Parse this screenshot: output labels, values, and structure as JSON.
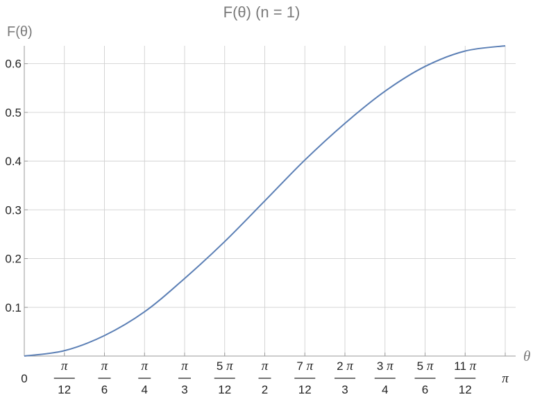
{
  "chart_data": {
    "type": "line",
    "title": "F(θ) (n = 1)",
    "xlabel": "θ",
    "ylabel": "F(θ)",
    "xlim": [
      0,
      3.14159265
    ],
    "ylim": [
      0,
      0.6366
    ],
    "grid": true,
    "x_ticks": [
      {
        "value": 0,
        "label": "0"
      },
      {
        "value": 0.2618,
        "num": "π",
        "den": "12"
      },
      {
        "value": 0.5236,
        "num": "π",
        "den": "6"
      },
      {
        "value": 0.7854,
        "num": "π",
        "den": "4"
      },
      {
        "value": 1.0472,
        "num": "π",
        "den": "3"
      },
      {
        "value": 1.309,
        "num": "5 π",
        "den": "12"
      },
      {
        "value": 1.5708,
        "num": "π",
        "den": "2"
      },
      {
        "value": 1.8326,
        "num": "7 π",
        "den": "12"
      },
      {
        "value": 2.0944,
        "num": "2 π",
        "den": "3"
      },
      {
        "value": 2.3562,
        "num": "3 π",
        "den": "4"
      },
      {
        "value": 2.618,
        "num": "5 π",
        "den": "6"
      },
      {
        "value": 2.8798,
        "num": "11 π",
        "den": "12"
      },
      {
        "value": 3.1416,
        "label": "π"
      }
    ],
    "y_ticks": [
      {
        "value": 0.1,
        "label": "0.1"
      },
      {
        "value": 0.2,
        "label": "0.2"
      },
      {
        "value": 0.3,
        "label": "0.3"
      },
      {
        "value": 0.4,
        "label": "0.4"
      },
      {
        "value": 0.5,
        "label": "0.5"
      },
      {
        "value": 0.6,
        "label": "0.6"
      }
    ],
    "series": [
      {
        "color": "#5b7fb5",
        "x": [
          0,
          0.2618,
          0.5236,
          0.7854,
          1.0472,
          1.309,
          1.5708,
          1.8326,
          2.0944,
          2.3562,
          2.618,
          2.8798,
          3.1416
        ],
        "y": [
          0,
          0.011,
          0.042,
          0.0908,
          0.1592,
          0.2349,
          0.3183,
          0.4022,
          0.4775,
          0.5434,
          0.5943,
          0.6259,
          0.6366
        ]
      }
    ]
  }
}
